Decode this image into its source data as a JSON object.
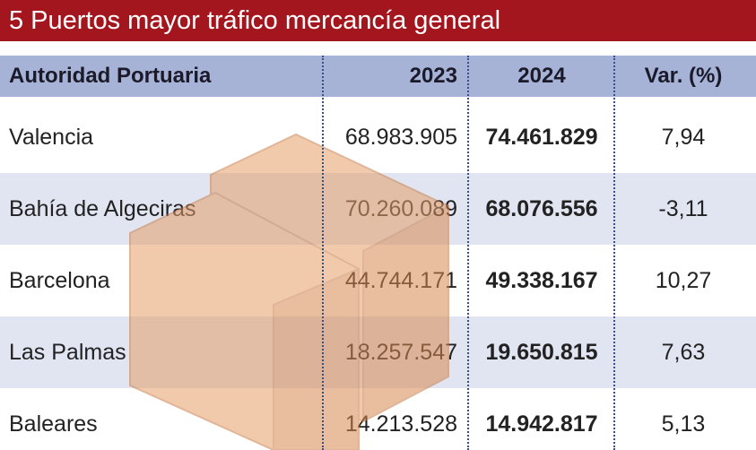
{
  "header": {
    "title": "5 Puertos mayor tráfico mercancía general"
  },
  "table": {
    "columns": [
      "Autoridad Portuaria",
      "2023",
      "2024",
      "Var. (%)"
    ],
    "rows": [
      [
        "Valencia",
        "68.983.905",
        "74.461.829",
        "7,94"
      ],
      [
        "Bahía de Algeciras",
        "70.260.089",
        "68.076.556",
        "-3,11"
      ],
      [
        "Barcelona",
        "44.744.171",
        "49.338.167",
        "10,27"
      ],
      [
        "Las Palmas",
        "18.257.547",
        "19.650.815",
        "7,63"
      ],
      [
        "Baleares",
        "14.213.528",
        "14.942.817",
        "5,13"
      ]
    ]
  }
}
